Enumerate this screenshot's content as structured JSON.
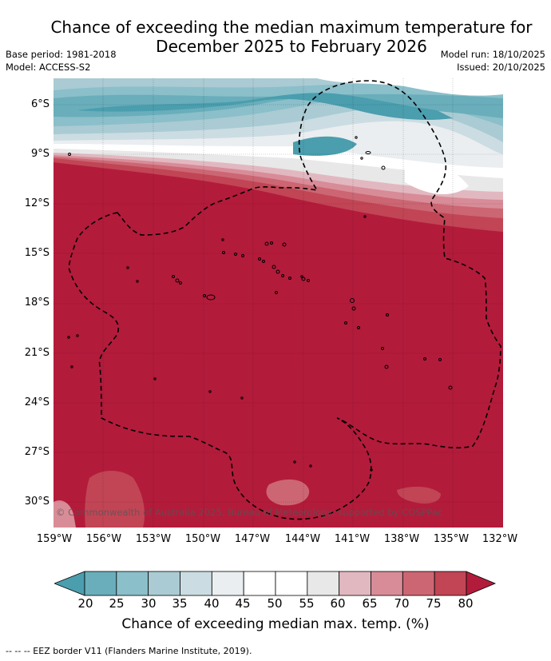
{
  "title": {
    "line1": "Chance of exceeding the median maximum temperature for",
    "line2": "December 2025 to February 2026"
  },
  "meta": {
    "base_period": "Base period: 1981-2018",
    "model": "Model: ACCESS-S2",
    "model_run": "Model run: 18/10/2025",
    "issued": "Issued: 20/10/2025"
  },
  "map": {
    "lon_min": -159,
    "lon_max": -132,
    "lat_min": -31.6,
    "lat_max": -4.5,
    "y_ticks": [
      {
        "lat": -6,
        "label": "6°S"
      },
      {
        "lat": -9,
        "label": "9°S"
      },
      {
        "lat": -12,
        "label": "12°S"
      },
      {
        "lat": -15,
        "label": "15°S"
      },
      {
        "lat": -18,
        "label": "18°S"
      },
      {
        "lat": -21,
        "label": "21°S"
      },
      {
        "lat": -24,
        "label": "24°S"
      },
      {
        "lat": -27,
        "label": "27°S"
      },
      {
        "lat": -30,
        "label": "30°S"
      }
    ],
    "x_ticks": [
      {
        "lon": -159,
        "label": "159°W"
      },
      {
        "lon": -156,
        "label": "156°W"
      },
      {
        "lon": -153,
        "label": "153°W"
      },
      {
        "lon": -150,
        "label": "150°W"
      },
      {
        "lon": -147,
        "label": "147°W"
      },
      {
        "lon": -144,
        "label": "144°W"
      },
      {
        "lon": -141,
        "label": "141°W"
      },
      {
        "lon": -138,
        "label": "138°W"
      },
      {
        "lon": -135,
        "label": "135°W"
      },
      {
        "lon": -132,
        "label": "132°W"
      }
    ],
    "dominant_category": "80+",
    "copyright": "© Commonwealth of Australia 2025, Bureau of Meteorology, supported by COSPPac"
  },
  "colorbar": {
    "title": "Chance of exceeding median max. temp. (%)",
    "ticks": [
      "20",
      "25",
      "30",
      "35",
      "40",
      "45",
      "50",
      "55",
      "60",
      "65",
      "70",
      "75",
      "80"
    ],
    "colors": [
      "#4a9eae",
      "#6aaebb",
      "#8bbfca",
      "#aacbd3",
      "#cbdde2",
      "#eaeef1",
      "#ffffff",
      "#ffffff",
      "#e8e8e8",
      "#e2b8c0",
      "#d88c97",
      "#cc6673",
      "#c14555",
      "#b31b3b"
    ]
  },
  "footnote": "--  --  -- EEZ border V11 (Flanders Marine Institute, 2019)."
}
